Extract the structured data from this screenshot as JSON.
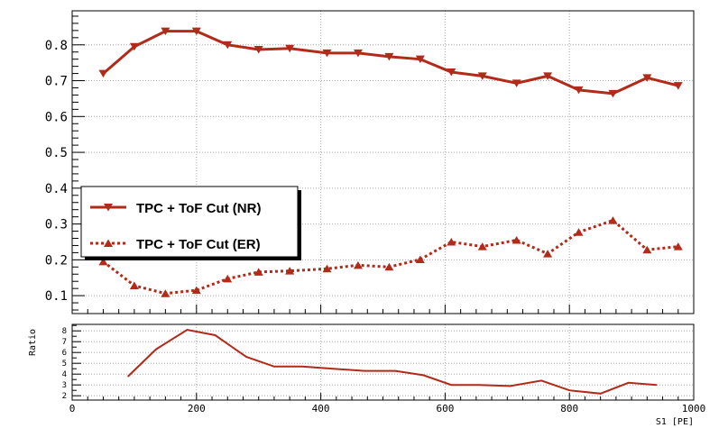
{
  "colors": {
    "series": "#b22a19",
    "grid": "#aaaaaa",
    "axis": "#000000",
    "legend_border": "#000000"
  },
  "chart_data": [
    {
      "type": "line",
      "panel": "main",
      "xlim": [
        0,
        1000
      ],
      "ylim": [
        0.05,
        0.895
      ],
      "yticks": [
        0.1,
        0.2,
        0.3,
        0.4,
        0.5,
        0.6,
        0.7,
        0.8
      ],
      "ytick_labels": [
        "0.1",
        "0.2",
        "0.3",
        "0.4",
        "0.5",
        "0.6",
        "0.7",
        "0.8"
      ],
      "grid": true,
      "legend_position": "left, mid-height",
      "series": [
        {
          "name": "TPC + ToF Cut (NR)",
          "style": "solid",
          "marker": "triangle-down",
          "x": [
            50,
            100,
            150,
            200,
            250,
            300,
            350,
            410,
            460,
            510,
            560,
            610,
            660,
            715,
            765,
            815,
            870,
            925,
            975
          ],
          "values": [
            0.72,
            0.795,
            0.838,
            0.838,
            0.8,
            0.787,
            0.79,
            0.777,
            0.777,
            0.767,
            0.76,
            0.724,
            0.713,
            0.693,
            0.713,
            0.674,
            0.664,
            0.708,
            0.686
          ]
        },
        {
          "name": "TPC + ToF Cut (ER)",
          "style": "dotted",
          "marker": "triangle-up",
          "x": [
            50,
            100,
            150,
            200,
            250,
            300,
            350,
            410,
            460,
            510,
            560,
            610,
            660,
            715,
            765,
            815,
            870,
            925,
            975
          ],
          "values": [
            0.195,
            0.128,
            0.106,
            0.115,
            0.147,
            0.166,
            0.169,
            0.175,
            0.185,
            0.18,
            0.201,
            0.25,
            0.237,
            0.255,
            0.217,
            0.277,
            0.31,
            0.228,
            0.237
          ]
        }
      ]
    },
    {
      "type": "line",
      "panel": "ratio",
      "ylabel": "Ratio",
      "xlabel": "S1 [PE]",
      "xlim": [
        0,
        1000
      ],
      "ylim": [
        1.6,
        8.6
      ],
      "xticks": [
        0,
        200,
        400,
        600,
        800,
        1000
      ],
      "xtick_labels": [
        "0",
        "200",
        "400",
        "600",
        "800",
        "1000"
      ],
      "yticks": [
        2,
        3,
        4,
        5,
        6,
        7,
        8
      ],
      "ytick_labels": [
        "2",
        "3",
        "4",
        "5",
        "6",
        "7",
        "8"
      ],
      "grid": true,
      "series": [
        {
          "x": [
            90,
            135,
            185,
            230,
            280,
            325,
            370,
            420,
            470,
            520,
            565,
            610,
            655,
            705,
            755,
            800,
            850,
            895,
            940
          ],
          "values": [
            3.8,
            6.3,
            8.1,
            7.6,
            5.6,
            4.7,
            4.7,
            4.5,
            4.3,
            4.3,
            3.9,
            3.0,
            3.0,
            2.9,
            3.4,
            2.5,
            2.2,
            3.2,
            3.0
          ]
        }
      ]
    }
  ]
}
